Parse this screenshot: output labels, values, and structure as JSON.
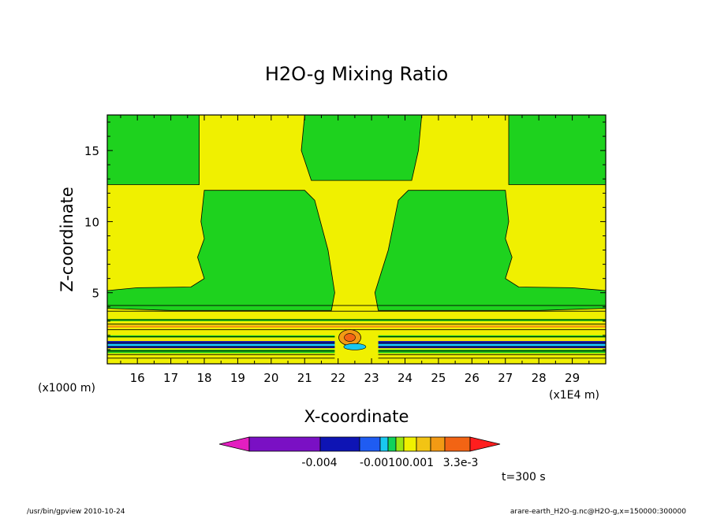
{
  "chart_data": {
    "type": "heatmap",
    "title": "H2O-g Mixing Ratio",
    "xlabel": "X-coordinate",
    "ylabel": "Z-coordinate",
    "x_unit": "(x1E4 m)",
    "y_unit": "(x1000 m)",
    "xlim": [
      15.1,
      30.0
    ],
    "ylim": [
      0,
      17.5
    ],
    "x_ticks": [
      "16",
      "17",
      "18",
      "19",
      "20",
      "21",
      "22",
      "23",
      "24",
      "25",
      "26",
      "27",
      "28",
      "29"
    ],
    "y_ticks": [
      "5",
      "10",
      "15"
    ],
    "x_tick_values": [
      16,
      17,
      18,
      19,
      20,
      21,
      22,
      23,
      24,
      25,
      26,
      27,
      28,
      29
    ],
    "y_tick_values": [
      5,
      10,
      15
    ],
    "time_label": "t=300 s",
    "colorbar": {
      "labels": [
        "-0.004",
        "-0.0010",
        "0.001",
        "3.3e-3"
      ],
      "colors": [
        "#e31ec0",
        "#7a10c4",
        "#0e14b4",
        "#1f5cf2",
        "#19c8f0",
        "#10d25a",
        "#9ae614",
        "#f0f000",
        "#f2c414",
        "#f29a14",
        "#f26414",
        "#ff1e1e"
      ]
    },
    "field_colors": {
      "green": "#1ed21e",
      "yellow": "#f0f000",
      "orange": "#f29a14",
      "blue": "#0e14b4",
      "lightblue": "#19c8f0"
    },
    "regions": {
      "top_left_green": {
        "x": [
          15.1,
          17.85
        ],
        "z": [
          12.6,
          17.5
        ]
      },
      "top_right_green": {
        "x": [
          27.1,
          30.0
        ],
        "z": [
          12.6,
          17.5
        ]
      },
      "top_center_green": {
        "x_bottom": [
          21.3,
          24.2
        ],
        "x_top": [
          21.0,
          24.5
        ],
        "z": [
          12.6,
          17.5
        ]
      },
      "lower_boundary_bands_z": [
        0.4,
        0.65,
        0.9,
        1.2,
        1.45,
        1.9,
        2.4,
        2.8,
        3.1,
        3.7,
        4.1
      ]
    }
  },
  "footer": {
    "left": "/usr/bin/gpview   2010-10-24",
    "right": "arare-earth_H2O-g.nc@H2O-g,x=150000:300000"
  }
}
